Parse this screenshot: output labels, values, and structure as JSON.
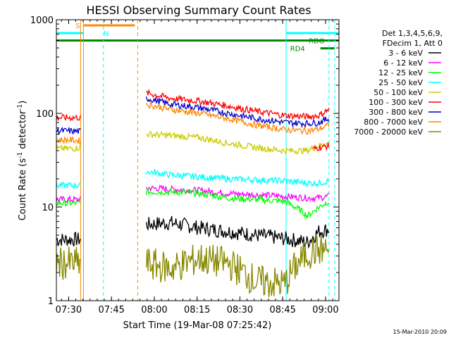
{
  "chart_data": {
    "type": "line",
    "title": "HESSI Observing Summary Count Rates",
    "xlabel": "Start Time (19-Mar-08 07:25:42)",
    "ylabel_main": "Count Rate (s",
    "ylabel_sup1": "-1",
    "ylabel_mid": " detector",
    "ylabel_sup2": "-1",
    "ylabel_end": ")",
    "x_unit": "minutes after 07:25:42",
    "xlim": [
      0,
      99
    ],
    "ylim": [
      1,
      1000
    ],
    "y_scale": "log",
    "x_ticks": [
      {
        "label": "07:30",
        "t": 4.3
      },
      {
        "label": "07:45",
        "t": 19.3
      },
      {
        "label": "08:00",
        "t": 34.3
      },
      {
        "label": "08:15",
        "t": 49.3
      },
      {
        "label": "08:30",
        "t": 64.3
      },
      {
        "label": "08:45",
        "t": 79.3
      },
      {
        "label": "09:00",
        "t": 94.3
      }
    ],
    "y_ticks": [
      {
        "label": "1",
        "v": 1
      },
      {
        "label": "10",
        "v": 10
      },
      {
        "label": "100",
        "v": 100
      },
      {
        "label": "1000",
        "v": 1000
      }
    ],
    "legend": {
      "header": [
        "Det 1,3,4,5,6,9,",
        "FDecim 1, Att 0"
      ],
      "placement": "right"
    },
    "series": [
      {
        "name": "3 - 6 keV",
        "color": "#000000",
        "segments": [
          {
            "t": [
              0,
              4,
              8.5
            ],
            "v": [
              4.5,
              4.5,
              4.5
            ]
          },
          {
            "t": [
              31.5,
              40,
              50,
              60,
              70,
              80,
              88,
              92,
              95.5
            ],
            "v": [
              6.5,
              6.8,
              6.0,
              5.5,
              5.0,
              4.6,
              4.2,
              5.5,
              5.8
            ]
          }
        ]
      },
      {
        "name": "6 - 12 keV",
        "color": "#ff00ff",
        "segments": [
          {
            "t": [
              0,
              4,
              8.5
            ],
            "v": [
              12,
              12,
              12
            ]
          },
          {
            "t": [
              31.5,
              40,
              50,
              60,
              70,
              80,
              88,
              92,
              95.5
            ],
            "v": [
              16,
              15.5,
              15,
              14,
              13.5,
              13,
              12.5,
              12.5,
              13
            ]
          }
        ]
      },
      {
        "name": "12 - 25 keV",
        "color": "#00ff00",
        "segments": [
          {
            "t": [
              0,
              4,
              8.5
            ],
            "v": [
              11,
              11,
              11
            ]
          },
          {
            "t": [
              31.5,
              40,
              50,
              60,
              70,
              80,
              86,
              88,
              92,
              95.5
            ],
            "v": [
              14.5,
              14.5,
              14,
              12.5,
              12,
              11.5,
              9,
              8,
              10,
              11.5
            ]
          }
        ]
      },
      {
        "name": "25 - 50 keV",
        "color": "#00ffff",
        "segments": [
          {
            "t": [
              0,
              4,
              8.5
            ],
            "v": [
              17,
              17,
              17
            ]
          },
          {
            "t": [
              31.5,
              40,
              50,
              60,
              70,
              80,
              88,
              92,
              95.5
            ],
            "v": [
              24,
              22,
              21,
              20,
              19.5,
              19,
              18,
              18,
              19
            ]
          }
        ]
      },
      {
        "name": "50 - 100 keV",
        "color": "#cccc00",
        "segments": [
          {
            "t": [
              0,
              4,
              8.5
            ],
            "v": [
              42,
              42,
              43
            ]
          },
          {
            "t": [
              31.5,
              40,
              50,
              60,
              70,
              80,
              88,
              92,
              95.5
            ],
            "v": [
              60,
              58,
              55,
              48,
              43,
              40,
              40,
              45,
              48
            ]
          }
        ]
      },
      {
        "name": "100 - 300 keV",
        "color": "#ff0000",
        "segments": [
          {
            "t": [
              0,
              4,
              8.5
            ],
            "v": [
              90,
              90,
              90
            ]
          },
          {
            "t": [
              31.5,
              40,
              50,
              60,
              70,
              80,
              88,
              92,
              95.5
            ],
            "v": [
              165,
              145,
              135,
              120,
              105,
              95,
              92,
              95,
              110
            ]
          },
          {
            "t": [
              90,
              95.5
            ],
            "v": [
              42,
              45
            ]
          }
        ]
      },
      {
        "name": "300 - 800 keV",
        "color": "#0000cc",
        "segments": [
          {
            "t": [
              0,
              4,
              8.5
            ],
            "v": [
              65,
              65,
              64
            ]
          },
          {
            "t": [
              31.5,
              40,
              50,
              60,
              70,
              80,
              88,
              92,
              95.5
            ],
            "v": [
              145,
              125,
              115,
              100,
              88,
              80,
              78,
              80,
              88
            ]
          }
        ]
      },
      {
        "name": "800 - 7000 keV",
        "color": "#ff8800",
        "segments": [
          {
            "t": [
              0,
              4,
              8.5
            ],
            "v": [
              52,
              52,
              51
            ]
          },
          {
            "t": [
              31.5,
              40,
              50,
              60,
              70,
              80,
              88,
              92,
              95.5
            ],
            "v": [
              125,
              110,
              100,
              88,
              75,
              67,
              65,
              68,
              75
            ]
          }
        ]
      },
      {
        "name": "7000 - 20000 keV",
        "color": "#888800",
        "segments": [
          {
            "t": [
              0,
              4,
              8.5
            ],
            "v": [
              2.5,
              2.5,
              2.5
            ]
          },
          {
            "t": [
              31.5,
              40,
              50,
              60,
              70,
              80,
              88,
              92,
              95.5
            ],
            "v": [
              2.5,
              2.2,
              2.8,
              2.5,
              1.6,
              1.5,
              3.2,
              3.5,
              3.5
            ]
          }
        ]
      }
    ],
    "annotations": [
      {
        "text": "S",
        "color": "#ff8800",
        "t": 7.5,
        "v": 870
      },
      {
        "text": "N",
        "color": "#00ffff",
        "t": 17.5,
        "v": 720
      },
      {
        "text": "RDO",
        "color": "#008800",
        "t": 91.2,
        "v": 600
      },
      {
        "text": "RD4",
        "color": "#008800",
        "t": 84.5,
        "v": 495
      }
    ],
    "flag_bars": [
      {
        "name": "S",
        "color": "#ff8800",
        "t0": 9.5,
        "t1": 27.5,
        "v": 870
      },
      {
        "name": "N",
        "color": "#00ffff",
        "t0": 0,
        "t1": 9.5,
        "v": 720
      },
      {
        "name": "N",
        "color": "#00ffff",
        "t0": 80.5,
        "t1": 99,
        "v": 720
      },
      {
        "name": "RDO",
        "color": "#008800",
        "t0": 0,
        "t1": 99,
        "v": 600
      },
      {
        "name": "RD4",
        "color": "#008800",
        "t0": 92.5,
        "t1": 97.5,
        "v": 495
      }
    ],
    "vlines": [
      {
        "t": 8.5,
        "color": "#ff8800",
        "style": "solid"
      },
      {
        "t": 9.5,
        "color": "#ff8800",
        "style": "solid"
      },
      {
        "t": 16.5,
        "color": "#00ffff",
        "style": "dashed"
      },
      {
        "t": 28.5,
        "color": "#ff8800",
        "style": "dashed"
      },
      {
        "t": 80.5,
        "color": "#00ffff",
        "style": "solid"
      },
      {
        "t": 95.5,
        "color": "#00ffff",
        "style": "dashed"
      },
      {
        "t": 97.5,
        "color": "#00ffff",
        "style": "dashed"
      }
    ]
  },
  "footer": {
    "timestamp": "15-Mar-2010 20:09"
  }
}
